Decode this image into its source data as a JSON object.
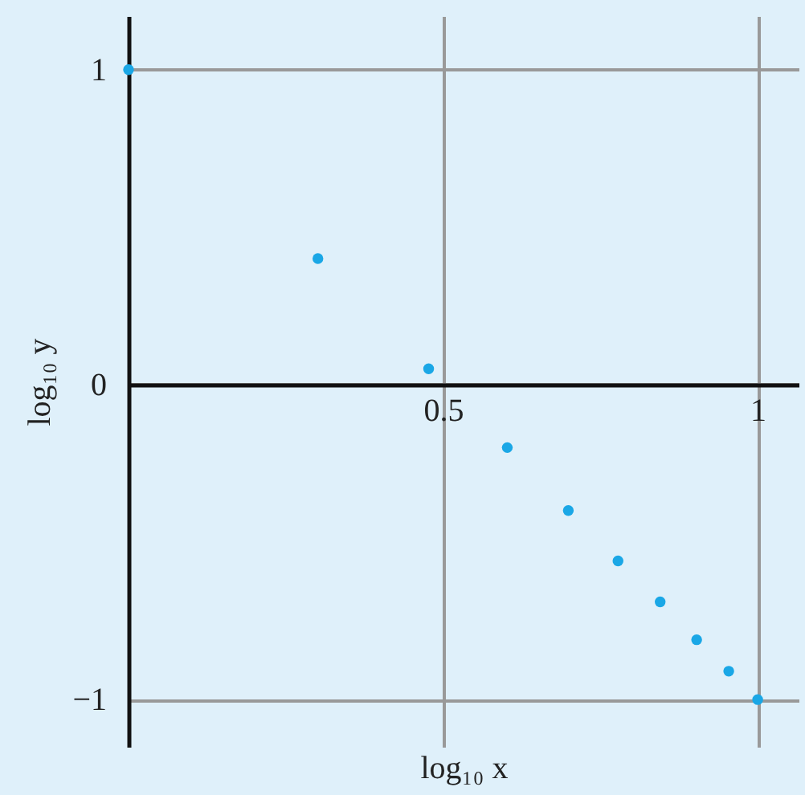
{
  "chart_data": {
    "type": "scatter",
    "xlabel": "log₁₀ x",
    "ylabel": "log₁₀ y",
    "x": [
      0,
      0.301,
      0.477,
      0.602,
      0.699,
      0.778,
      0.845,
      0.903,
      0.954,
      1
    ],
    "series": [
      {
        "color": "#1aa7e6",
        "values": [
          1,
          0.4,
          0.05,
          -0.2,
          -0.4,
          -0.56,
          -0.69,
          -0.81,
          -0.91,
          -1
        ]
      }
    ],
    "xlim": [
      0,
      1.065
    ],
    "ylim": [
      -1.15,
      1.17
    ],
    "xticks": [
      0.5,
      1
    ],
    "yticks": [
      -1,
      0,
      1
    ],
    "grid": true,
    "marker": "circle"
  }
}
